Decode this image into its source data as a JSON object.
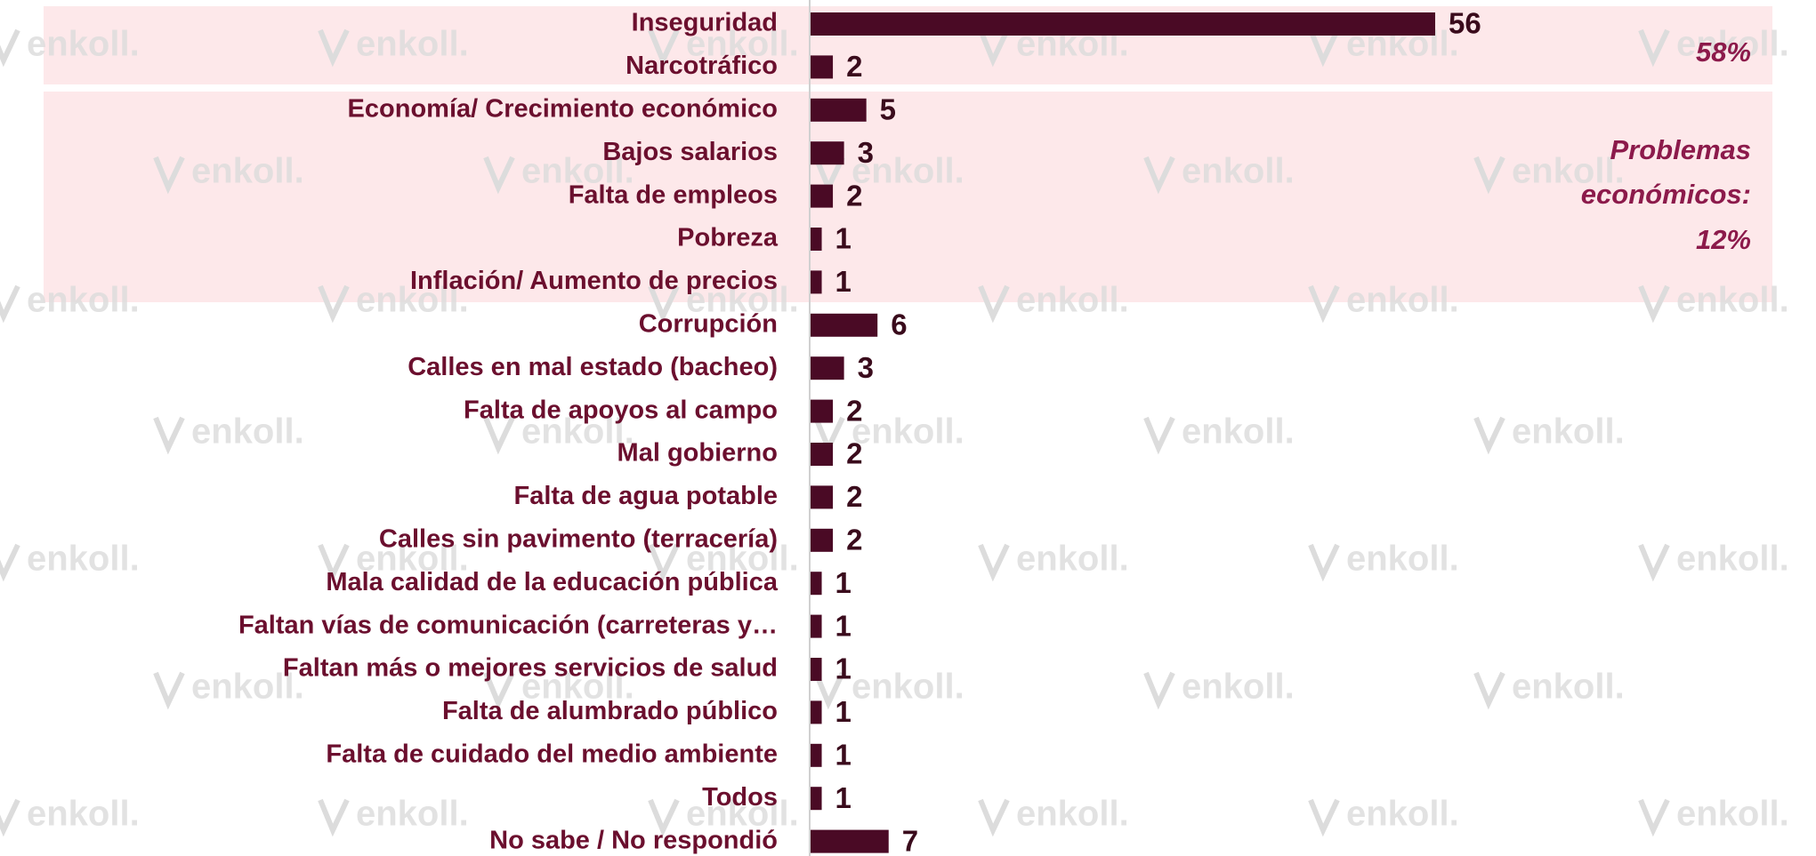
{
  "chart_data": {
    "type": "bar",
    "orientation": "horizontal",
    "categories": [
      "Inseguridad",
      "Narcotráfico",
      "Economía/ Crecimiento económico",
      "Bajos salarios",
      "Falta de empleos",
      "Pobreza",
      "Inflación/ Aumento de precios",
      "Corrupción",
      "Calles en mal estado (bacheo)",
      "Falta de apoyos al campo",
      "Mal gobierno",
      "Falta de agua potable",
      "Calles sin pavimento (terracería)",
      "Mala calidad de la educación pública",
      "Faltan vías de comunicación (carreteras y…",
      "Faltan más o mejores servicios de salud",
      "Falta de alumbrado público",
      "Falta de cuidado del medio ambiente",
      "Todos",
      "No sabe / No respondió"
    ],
    "values": [
      56,
      2,
      5,
      3,
      2,
      1,
      1,
      6,
      3,
      2,
      2,
      2,
      2,
      1,
      1,
      1,
      1,
      1,
      1,
      7
    ],
    "color": "#4a0a25",
    "annotations": [
      {
        "lines": [
          "58%"
        ]
      },
      {
        "lines": [
          "Problemas",
          "económicos:",
          "12%"
        ]
      }
    ],
    "watermark": "enkoll."
  }
}
